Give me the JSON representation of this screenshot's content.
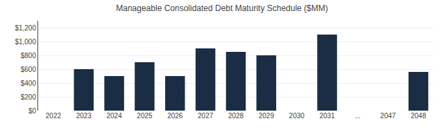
{
  "chart_data": {
    "type": "bar",
    "title": "Manageable Consolidated Debt Maturity Schedule ($MM)",
    "categories": [
      "2022",
      "2023",
      "2024",
      "2025",
      "2026",
      "2027",
      "2028",
      "2029",
      "2030",
      "2031",
      "...",
      "2047",
      "2048"
    ],
    "values": [
      0,
      600,
      500,
      700,
      500,
      900,
      850,
      800,
      0,
      1100,
      0,
      0,
      560
    ],
    "color": "#1b2d45",
    "ylim": [
      0,
      1300
    ],
    "yticks": [
      {
        "value": 0,
        "label": "$0"
      },
      {
        "value": 200,
        "label": "$200"
      },
      {
        "value": 400,
        "label": "$400"
      },
      {
        "value": 600,
        "label": "$600"
      },
      {
        "value": 800,
        "label": "$800"
      },
      {
        "value": 1000,
        "label": "$1,000"
      },
      {
        "value": 1200,
        "label": "$1,200"
      }
    ],
    "grid": true
  }
}
